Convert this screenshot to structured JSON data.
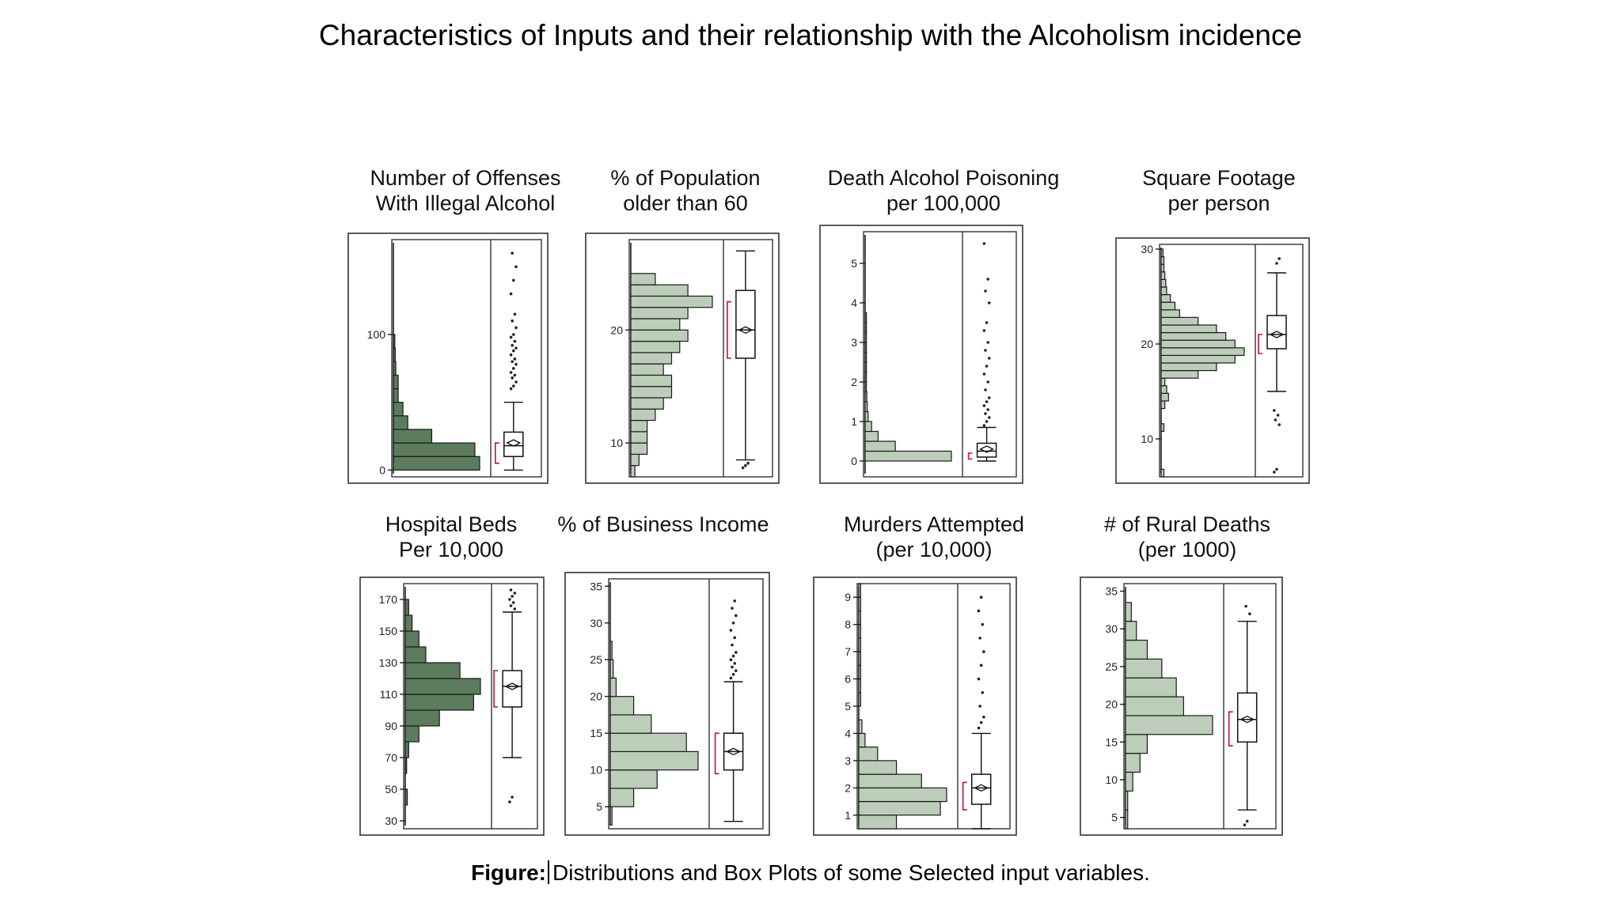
{
  "title": "Characteristics of Inputs and their relationship with the Alcoholism incidence",
  "caption": {
    "prefix": "Figure:",
    "text": "Distributions and Box Plots of some Selected input variables."
  },
  "colors": {
    "dark_bar": "#5d7b5d",
    "light_bar": "#bccdb9",
    "bracket": "#c8102e",
    "stroke": "#222222"
  },
  "chart_data": [
    {
      "type": "bar",
      "orientation": "horizontal",
      "title_lines": [
        "Number of Offenses",
        "With Illegal Alcohol"
      ],
      "ylim": [
        -5,
        170
      ],
      "ticks": [
        0,
        100
      ],
      "bin_width": 10,
      "bin_start": 0,
      "counts": [
        18,
        17,
        8,
        3,
        2,
        1,
        1,
        0.5,
        0.4,
        0.3
      ],
      "color": "dark",
      "box": {
        "min": 0,
        "q1": 10,
        "median": 18,
        "q3": 28,
        "max": 50,
        "mean": 20,
        "bracket": [
          5,
          20
        ]
      },
      "outliers": [
        60,
        62,
        65,
        68,
        70,
        72,
        75,
        78,
        80,
        82,
        85,
        88,
        90,
        92,
        95,
        98,
        100,
        105,
        110,
        115,
        130,
        140,
        150,
        160
      ]
    },
    {
      "type": "bar",
      "orientation": "horizontal",
      "title_lines": [
        "% of Population",
        "older than 60"
      ],
      "ylim": [
        7,
        28
      ],
      "ticks": [
        10,
        20
      ],
      "bin_width": 1,
      "bin_start": 7,
      "counts": [
        0.5,
        1,
        2,
        2,
        2,
        3,
        4,
        5,
        5,
        4,
        5,
        6,
        7,
        6,
        7,
        10,
        7,
        3
      ],
      "color": "light",
      "box": {
        "min": 8.5,
        "q1": 17.5,
        "median": 20,
        "q3": 23.5,
        "max": 27,
        "mean": 20,
        "bracket": [
          17.5,
          22.5
        ]
      },
      "outliers": [
        7.8,
        8,
        8.2
      ]
    },
    {
      "type": "bar",
      "orientation": "horizontal",
      "title_lines": [
        "Death Alcohol Poisoning",
        "per 100,000"
      ],
      "ylim": [
        -0.4,
        5.8
      ],
      "ticks": [
        0,
        1,
        2,
        3,
        4,
        5
      ],
      "bin_width": 0.25,
      "bin_start": 0,
      "counts": [
        20,
        7,
        3,
        1.5,
        0.7,
        0.5,
        0.4,
        0.3,
        0.3,
        0.3,
        0.3,
        0.3,
        0.3,
        0.3,
        0.3
      ],
      "color": "light",
      "box": {
        "min": 0,
        "q1": 0.1,
        "median": 0.25,
        "q3": 0.45,
        "max": 0.85,
        "mean": 0.3,
        "bracket": [
          0.05,
          0.2
        ]
      },
      "outliers": [
        0.9,
        1,
        1.1,
        1.2,
        1.3,
        1.4,
        1.5,
        1.6,
        1.8,
        2,
        2.2,
        2.4,
        2.6,
        2.8,
        3,
        3.3,
        3.5,
        4,
        4.3,
        4.6,
        5.5
      ]
    },
    {
      "type": "bar",
      "orientation": "horizontal",
      "title_lines": [
        "Square Footage",
        "per person"
      ],
      "ylim": [
        6,
        30.5
      ],
      "ticks": [
        10,
        20,
        30
      ],
      "bin_width": 0.8,
      "bin_start": 6,
      "counts": [
        0.3,
        0,
        0,
        0,
        0,
        0,
        0.3,
        0,
        0,
        0.4,
        0.8,
        0.6,
        0.4,
        4,
        6,
        8,
        9,
        8,
        7,
        6,
        4,
        2,
        1.5,
        1,
        0.6,
        0.5,
        0.4,
        0.3,
        0.3,
        0.2
      ],
      "color": "light",
      "box": {
        "min": 15,
        "q1": 19.5,
        "median": 21,
        "q3": 23,
        "max": 27.5,
        "mean": 21,
        "bracket": [
          19,
          21
        ]
      },
      "outliers": [
        6.5,
        6.8,
        11.5,
        12,
        12.5,
        13,
        28.5,
        29
      ]
    },
    {
      "type": "bar",
      "orientation": "horizontal",
      "title_lines": [
        "Hospital Beds",
        "Per 10,000"
      ],
      "ylim": [
        25,
        180
      ],
      "ticks": [
        30,
        50,
        70,
        90,
        110,
        130,
        150,
        170
      ],
      "bin_width": 10,
      "bin_start": 40,
      "counts": [
        0.3,
        0,
        0.2,
        0.5,
        2,
        5,
        10,
        11,
        8,
        3,
        2,
        1,
        0.5
      ],
      "color": "dark",
      "box": {
        "min": 70,
        "q1": 102,
        "median": 115,
        "q3": 125,
        "max": 162,
        "mean": 115,
        "bracket": [
          102,
          125
        ]
      },
      "outliers": [
        42,
        45,
        164,
        166,
        168,
        170,
        172,
        174,
        176
      ]
    },
    {
      "type": "bar",
      "orientation": "horizontal",
      "title_lines": [
        "% of Business Income"
      ],
      "ylim": [
        2,
        36
      ],
      "ticks": [
        5,
        10,
        15,
        20,
        25,
        30,
        35
      ],
      "bin_width": 2.5,
      "bin_start": 2.5,
      "counts": [
        0.3,
        4,
        8,
        15,
        13,
        7,
        4,
        1,
        0.5,
        0.3
      ],
      "color": "light",
      "box": {
        "min": 3,
        "q1": 10,
        "median": 12.5,
        "q3": 15,
        "max": 22,
        "mean": 12.5,
        "bracket": [
          9.5,
          15
        ]
      },
      "outliers": [
        22.5,
        23,
        23.5,
        24,
        24.5,
        25,
        25.5,
        26,
        27,
        28,
        29,
        30,
        31,
        32,
        33
      ]
    },
    {
      "type": "bar",
      "orientation": "horizontal",
      "title_lines": [
        "Murders Attempted",
        "(per 10,000)"
      ],
      "ylim": [
        0.5,
        9.5
      ],
      "ticks": [
        1,
        2,
        3,
        4,
        5,
        6,
        7,
        8,
        9
      ],
      "bin_width": 0.5,
      "bin_start": 0.5,
      "counts": [
        6,
        13,
        14,
        10,
        6,
        3,
        1,
        0.5,
        0,
        0.3,
        0.3,
        0.3,
        0.3,
        0.3,
        0.3,
        0.3,
        0.3,
        0.3
      ],
      "color": "light",
      "box": {
        "min": 0.5,
        "q1": 1.4,
        "median": 2,
        "q3": 2.5,
        "max": 4,
        "mean": 2,
        "bracket": [
          1.2,
          2.2
        ]
      },
      "outliers": [
        4.2,
        4.4,
        4.6,
        5,
        5.5,
        6,
        6.5,
        7,
        7.5,
        8,
        8.5,
        9
      ]
    },
    {
      "type": "bar",
      "orientation": "horizontal",
      "title_lines": [
        "# of Rural Deaths",
        "(per 1000)"
      ],
      "ylim": [
        3.5,
        36
      ],
      "ticks": [
        5,
        10,
        15,
        20,
        25,
        30,
        35
      ],
      "bin_width": 2.5,
      "bin_start": 3.5,
      "counts": [
        0.3,
        0.3,
        1,
        2,
        3,
        12,
        8,
        7,
        5,
        3,
        1.5,
        0.8
      ],
      "color": "light",
      "box": {
        "min": 6,
        "q1": 15,
        "median": 18,
        "q3": 21.5,
        "max": 31,
        "mean": 18,
        "bracket": [
          14.5,
          19
        ]
      },
      "outliers": [
        4,
        4.5,
        32,
        33
      ]
    }
  ]
}
